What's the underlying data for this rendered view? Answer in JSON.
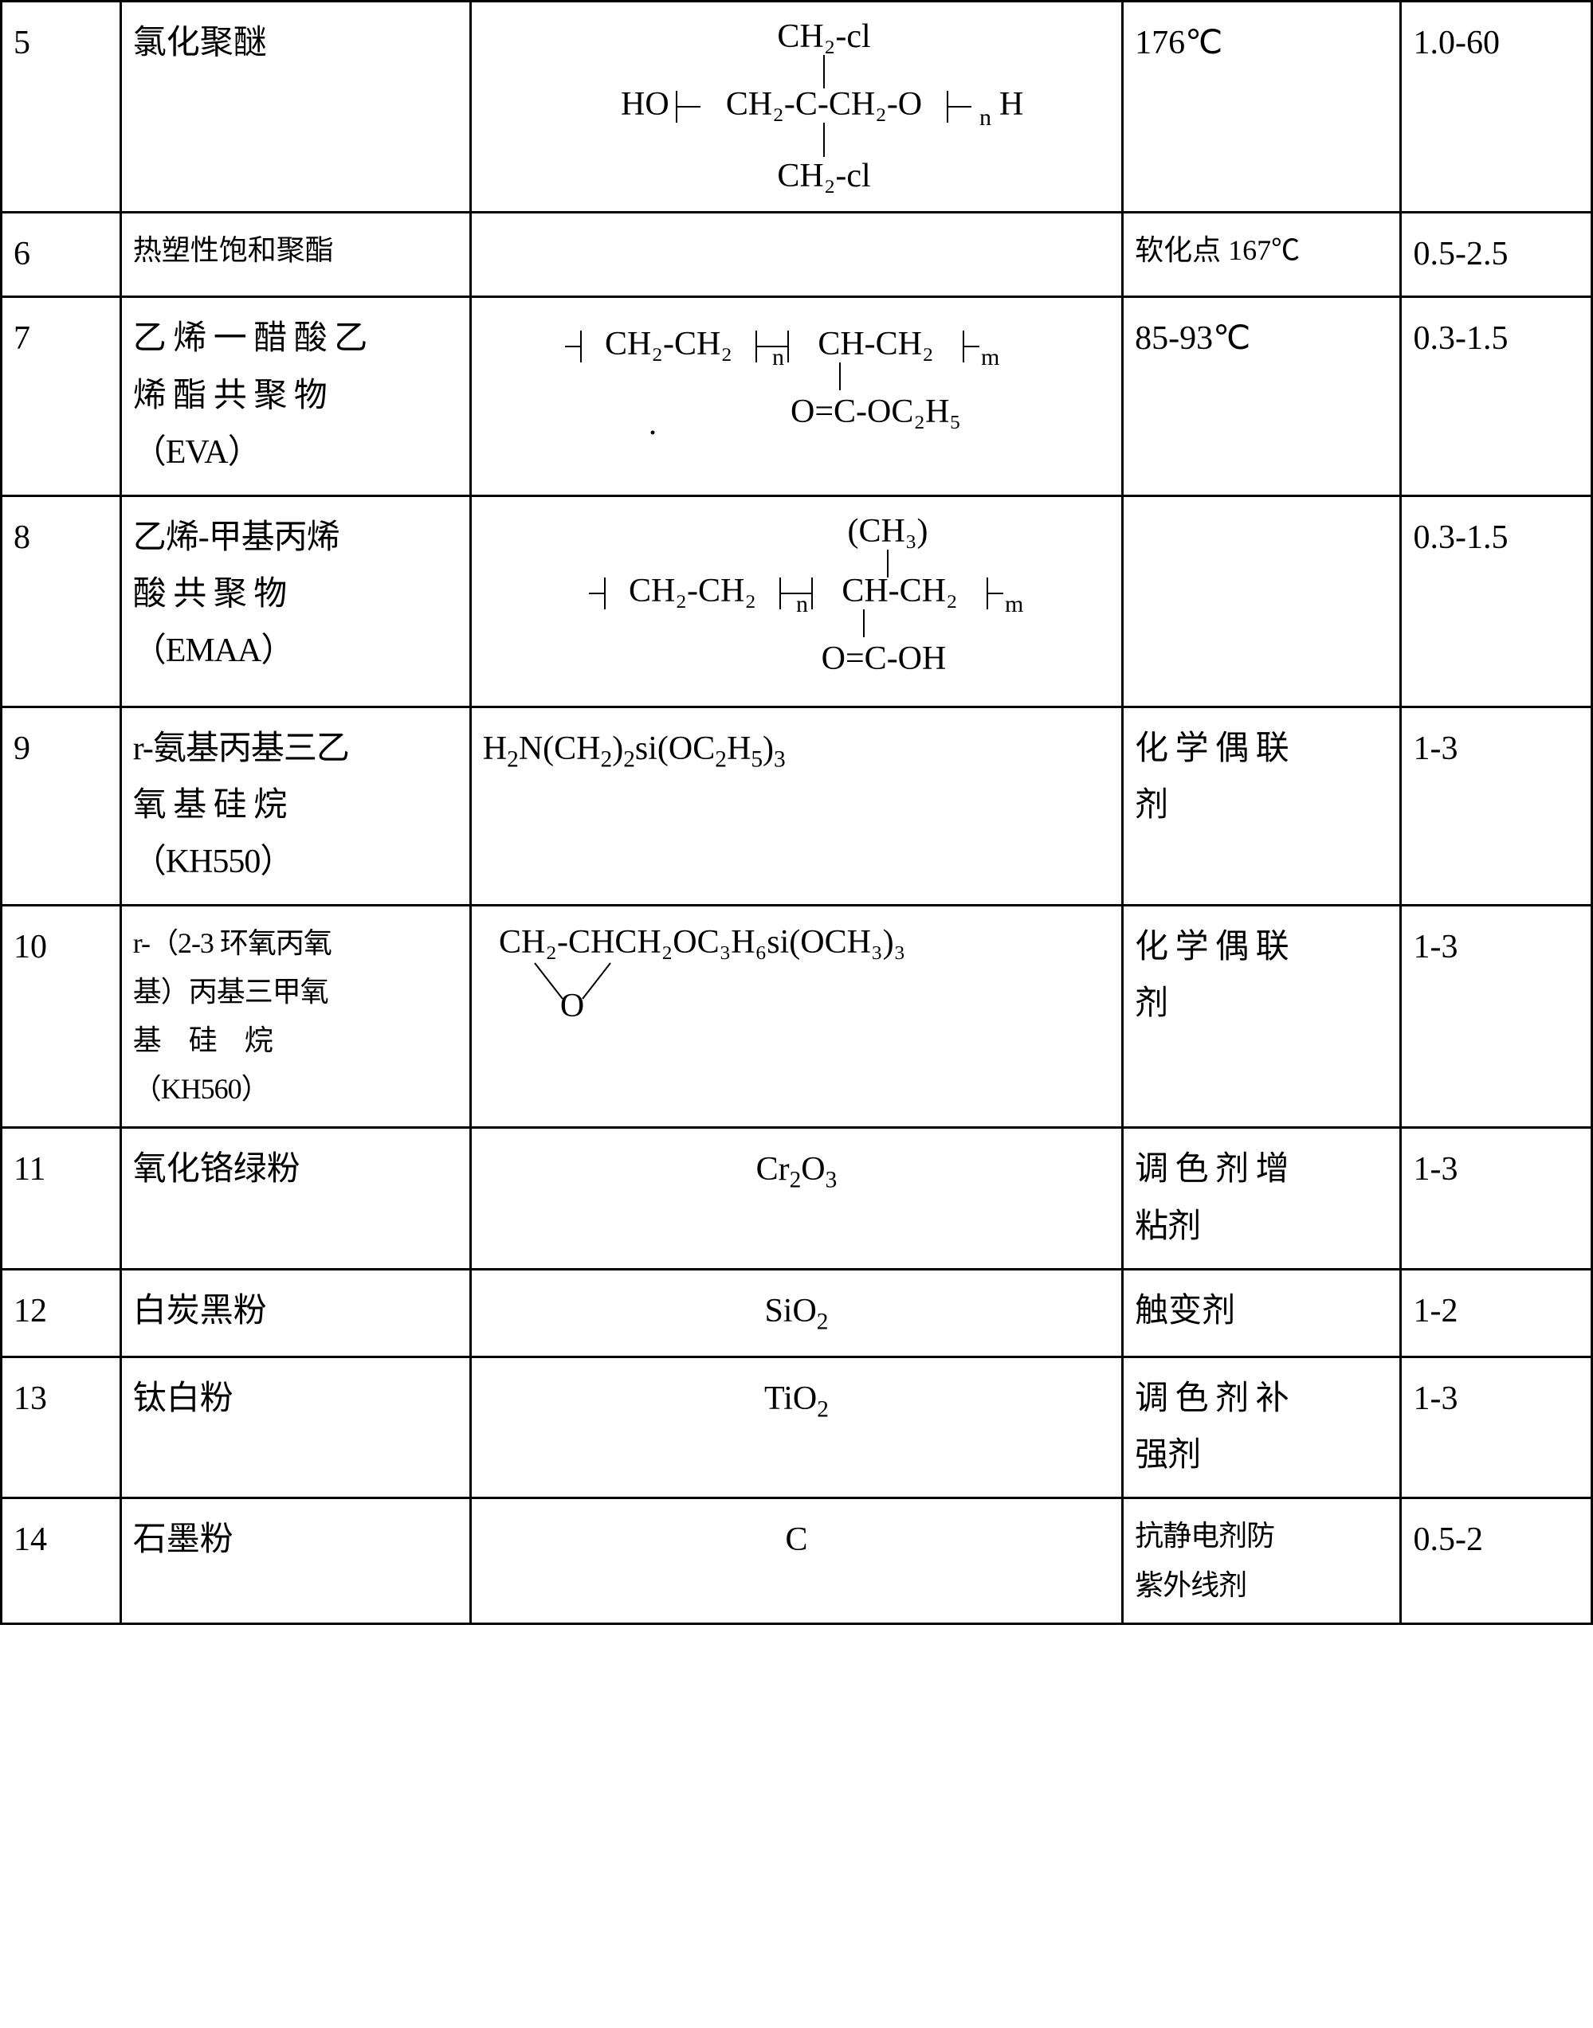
{
  "table": {
    "border_color": "#000000",
    "background": "#ffffff",
    "font_size_pt": 32,
    "columns": [
      "num",
      "name",
      "structure",
      "property",
      "ratio"
    ],
    "column_widths_pct": [
      7.5,
      22,
      41,
      17.5,
      12
    ],
    "rows": [
      {
        "num": "5",
        "name": "氯化聚醚",
        "structure_kind": "svg-row5",
        "structure_data": {
          "top": "CH₂-cl",
          "mid_left": "HO",
          "mid_unit": "CH₂-C-CH₂-O",
          "mid_sub": "n",
          "mid_right": "H",
          "bot": "CH₂-cl"
        },
        "property": "176℃",
        "ratio": "1.0-60"
      },
      {
        "num": "6",
        "name": "热塑性饱和聚酯",
        "name_small": true,
        "structure_kind": "blank",
        "property": "软化点 167℃",
        "property_small": true,
        "ratio": "0.5-2.5"
      },
      {
        "num": "7",
        "name_lines": [
          "乙 烯 一 醋 酸 乙",
          "烯 酯 共 聚 物",
          "（EVA）"
        ],
        "structure_kind": "svg-row7",
        "structure_data": {
          "unit1": "CH₂-CH₂",
          "sub1": "n",
          "unit2": "CH-CH₂",
          "sub2": "m",
          "pendant": "O=C-OC₂H₅",
          "dot": "."
        },
        "property": "85-93℃",
        "ratio": "0.3-1.5"
      },
      {
        "num": "8",
        "name_lines": [
          "乙烯-甲基丙烯",
          "酸 共 聚 物",
          "（EMAA）"
        ],
        "structure_kind": "svg-row8",
        "structure_data": {
          "top": "(CH₃)",
          "unit1": "CH₂-CH₂",
          "sub1": "n",
          "unit2": "CH-CH₂",
          "sub2": "m",
          "pendant": "O=C-OH"
        },
        "property": "",
        "ratio": "0.3-1.5"
      },
      {
        "num": "9",
        "name_lines": [
          "r-氨基丙基三乙",
          "氧 基 硅 烷",
          "（KH550）"
        ],
        "structure_kind": "formula",
        "structure_html": "H<span class='sub'>2</span>N(CH<span class='sub'>2</span>)<span class='sub'>2</span>si(OC<span class='sub'>2</span>H<span class='sub'>5</span>)<span class='sub'>3</span>",
        "property_lines": [
          "化 学 偶 联",
          "剂"
        ],
        "ratio": "1-3"
      },
      {
        "num": "10",
        "name_lines": [
          "r-（2-3 环氧丙氧",
          "基）丙基三甲氧",
          "基　硅　烷",
          "（KH560）"
        ],
        "name_small": true,
        "structure_kind": "svg-row10",
        "structure_data": {
          "line": "CH₂-CHCH₂OC₃H₆si(OCH₃)₃",
          "epoxy": "O"
        },
        "property_lines": [
          "化 学 偶 联",
          "剂"
        ],
        "ratio": "1-3"
      },
      {
        "num": "11",
        "name": "氧化铬绿粉",
        "structure_kind": "formula",
        "structure_html": "Cr<span class='sub'>2</span>O<span class='sub'>3</span>",
        "property_lines": [
          "调 色 剂 增",
          "粘剂"
        ],
        "ratio": "1-3"
      },
      {
        "num": "12",
        "name": "白炭黑粉",
        "structure_kind": "formula",
        "structure_html": "SiO<span class='sub'>2</span>",
        "property": "触变剂",
        "ratio": "1-2"
      },
      {
        "num": "13",
        "name": "钛白粉",
        "structure_kind": "formula",
        "structure_html": "TiO<span class='sub'>2</span>",
        "property_lines": [
          "调 色 剂 补",
          "强剂"
        ],
        "ratio": "1-3"
      },
      {
        "num": "14",
        "name": "石墨粉",
        "structure_kind": "formula",
        "structure_html": "C",
        "property_lines": [
          "抗静电剂防",
          "紫外线剂"
        ],
        "property_small": true,
        "ratio": "0.5-2"
      }
    ]
  }
}
